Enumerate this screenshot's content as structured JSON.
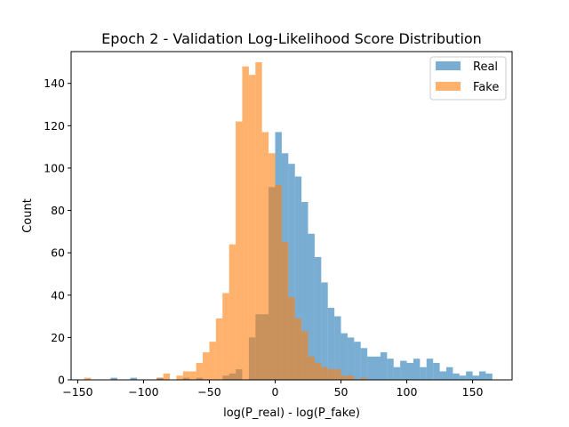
{
  "chart_data": {
    "type": "bar",
    "title": "Epoch 2 - Validation Log-Likelihood Score Distribution",
    "xlabel": "log(P_real) - log(P_fake)",
    "ylabel": "Count",
    "xlim": [
      -155,
      180
    ],
    "ylim": [
      0,
      155
    ],
    "x_ticks": [
      -150,
      -100,
      -50,
      0,
      50,
      100,
      150
    ],
    "y_ticks": [
      0,
      20,
      40,
      60,
      80,
      100,
      120,
      140
    ],
    "grid": false,
    "legend_position": "top-right",
    "series": [
      {
        "name": "Real",
        "color": "#1f77b4",
        "alpha": 0.6,
        "bins": [
          [
            -125,
            -120,
            1
          ],
          [
            -110,
            -105,
            1
          ],
          [
            -90,
            -85,
            1
          ],
          [
            -70,
            -65,
            1
          ],
          [
            -60,
            -55,
            1
          ],
          [
            -40,
            -35,
            2
          ],
          [
            -35,
            -30,
            3
          ],
          [
            -30,
            -25,
            5
          ],
          [
            -20,
            -15,
            20
          ],
          [
            -15,
            -10,
            31
          ],
          [
            -10,
            -5,
            31
          ],
          [
            -5,
            0,
            91
          ],
          [
            0,
            5,
            117
          ],
          [
            5,
            10,
            107
          ],
          [
            10,
            15,
            102
          ],
          [
            15,
            20,
            96
          ],
          [
            20,
            25,
            84
          ],
          [
            25,
            30,
            69
          ],
          [
            30,
            35,
            58
          ],
          [
            35,
            40,
            46
          ],
          [
            40,
            45,
            34
          ],
          [
            45,
            50,
            30
          ],
          [
            50,
            55,
            22
          ],
          [
            55,
            60,
            20
          ],
          [
            60,
            65,
            18
          ],
          [
            65,
            70,
            15
          ],
          [
            70,
            75,
            11
          ],
          [
            75,
            80,
            11
          ],
          [
            80,
            85,
            13
          ],
          [
            85,
            90,
            10
          ],
          [
            90,
            95,
            6
          ],
          [
            95,
            100,
            9
          ],
          [
            100,
            105,
            8
          ],
          [
            105,
            110,
            10
          ],
          [
            110,
            115,
            6
          ],
          [
            115,
            120,
            10
          ],
          [
            120,
            125,
            8
          ],
          [
            125,
            130,
            4
          ],
          [
            130,
            135,
            6
          ],
          [
            135,
            140,
            3
          ],
          [
            140,
            145,
            2
          ],
          [
            145,
            150,
            4
          ],
          [
            150,
            155,
            2
          ],
          [
            155,
            160,
            4
          ],
          [
            160,
            165,
            3
          ]
        ]
      },
      {
        "name": "Fake",
        "color": "#ff7f0e",
        "alpha": 0.6,
        "bins": [
          [
            -145,
            -140,
            1
          ],
          [
            -90,
            -85,
            1
          ],
          [
            -85,
            -80,
            3
          ],
          [
            -75,
            -70,
            2
          ],
          [
            -70,
            -65,
            4
          ],
          [
            -65,
            -60,
            4
          ],
          [
            -60,
            -55,
            8
          ],
          [
            -55,
            -50,
            13
          ],
          [
            -50,
            -45,
            18
          ],
          [
            -45,
            -40,
            29
          ],
          [
            -40,
            -35,
            41
          ],
          [
            -35,
            -30,
            64
          ],
          [
            -30,
            -25,
            122
          ],
          [
            -25,
            -20,
            148
          ],
          [
            -20,
            -15,
            144
          ],
          [
            -15,
            -10,
            150
          ],
          [
            -10,
            -5,
            117
          ],
          [
            -5,
            0,
            107
          ],
          [
            0,
            5,
            92
          ],
          [
            5,
            10,
            65
          ],
          [
            10,
            15,
            39
          ],
          [
            15,
            20,
            29
          ],
          [
            20,
            25,
            23
          ],
          [
            25,
            30,
            11
          ],
          [
            30,
            35,
            8
          ],
          [
            35,
            40,
            6
          ],
          [
            40,
            45,
            5
          ],
          [
            45,
            50,
            5
          ],
          [
            50,
            55,
            2
          ],
          [
            55,
            60,
            2
          ],
          [
            65,
            70,
            1
          ]
        ]
      }
    ]
  }
}
